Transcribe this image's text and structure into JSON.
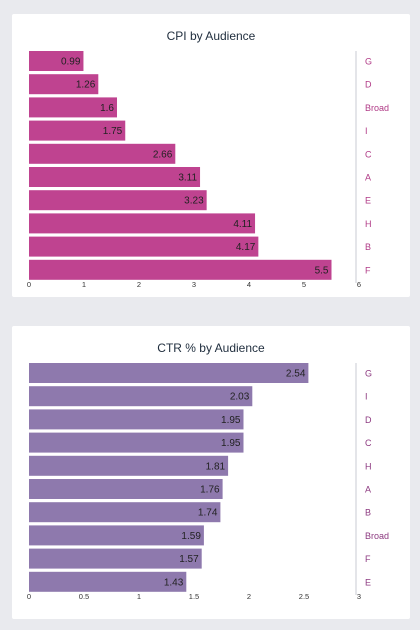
{
  "chart_data": [
    {
      "type": "bar",
      "orientation": "horizontal",
      "title": "CPI by Audience",
      "categories": [
        "G",
        "D",
        "Broad",
        "I",
        "C",
        "A",
        "E",
        "H",
        "B",
        "F"
      ],
      "values": [
        0.99,
        1.26,
        1.6,
        1.75,
        2.66,
        3.11,
        3.23,
        4.11,
        4.17,
        5.5
      ],
      "value_labels": [
        "0.99",
        "1.26",
        "1.6",
        "1.75",
        "2.66",
        "3.11",
        "3.23",
        "4.11",
        "4.17",
        "5.5"
      ],
      "xlim": [
        0,
        6
      ],
      "xticks": [
        "0",
        "1",
        "2",
        "3",
        "4",
        "5",
        "6"
      ],
      "xlabel": "",
      "ylabel": "",
      "category_axis_side": "right",
      "grid": false,
      "bar_color": "#bf4390",
      "label_color": "#b03a86"
    },
    {
      "type": "bar",
      "orientation": "horizontal",
      "title": "CTR % by Audience",
      "categories": [
        "G",
        "I",
        "D",
        "C",
        "H",
        "A",
        "B",
        "Broad",
        "F",
        "E"
      ],
      "values": [
        2.54,
        2.03,
        1.95,
        1.95,
        1.81,
        1.76,
        1.74,
        1.59,
        1.57,
        1.43
      ],
      "value_labels": [
        "2.54",
        "2.03",
        "1.95",
        "1.95",
        "1.81",
        "1.76",
        "1.74",
        "1.59",
        "1.57",
        "1.43"
      ],
      "xlim": [
        0,
        3
      ],
      "xticks": [
        "0",
        "0.5",
        "1",
        "1.5",
        "2",
        "2.5",
        "3"
      ],
      "xlabel": "",
      "ylabel": "",
      "category_axis_side": "right",
      "grid": false,
      "bar_color": "#8e79ad",
      "label_color": "#8d3a80"
    }
  ]
}
